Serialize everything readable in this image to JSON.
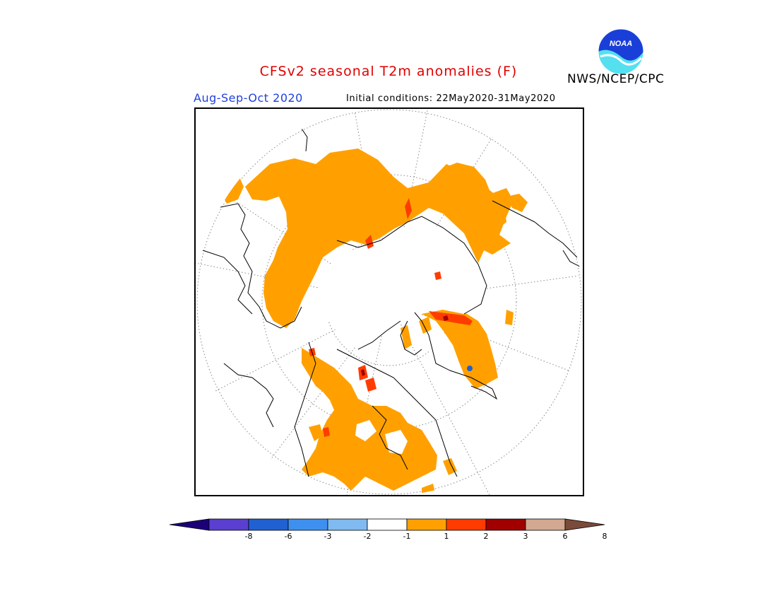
{
  "title": "CFSv2 seasonal T2m anomalies (F)",
  "organization": "NWS/NCEP/CPC",
  "logo_text": "NOAA",
  "period": "Aug-Sep-Oct 2020",
  "initial_conditions": "Initial conditions: 22May2020-31May2020",
  "colors": {
    "title": "#e00000",
    "period": "#2040e0"
  },
  "legend": {
    "labels": [
      "-8",
      "-6",
      "-3",
      "-2",
      "-1",
      "1",
      "2",
      "3",
      "6",
      "8"
    ],
    "colors": [
      "#1c0078",
      "#5a3fd0",
      "#2060d0",
      "#3e90f0",
      "#80baf0",
      "#ffffff",
      "#ffa000",
      "#ff3c00",
      "#a00000",
      "#d2a890",
      "#7a4a3a"
    ]
  }
}
